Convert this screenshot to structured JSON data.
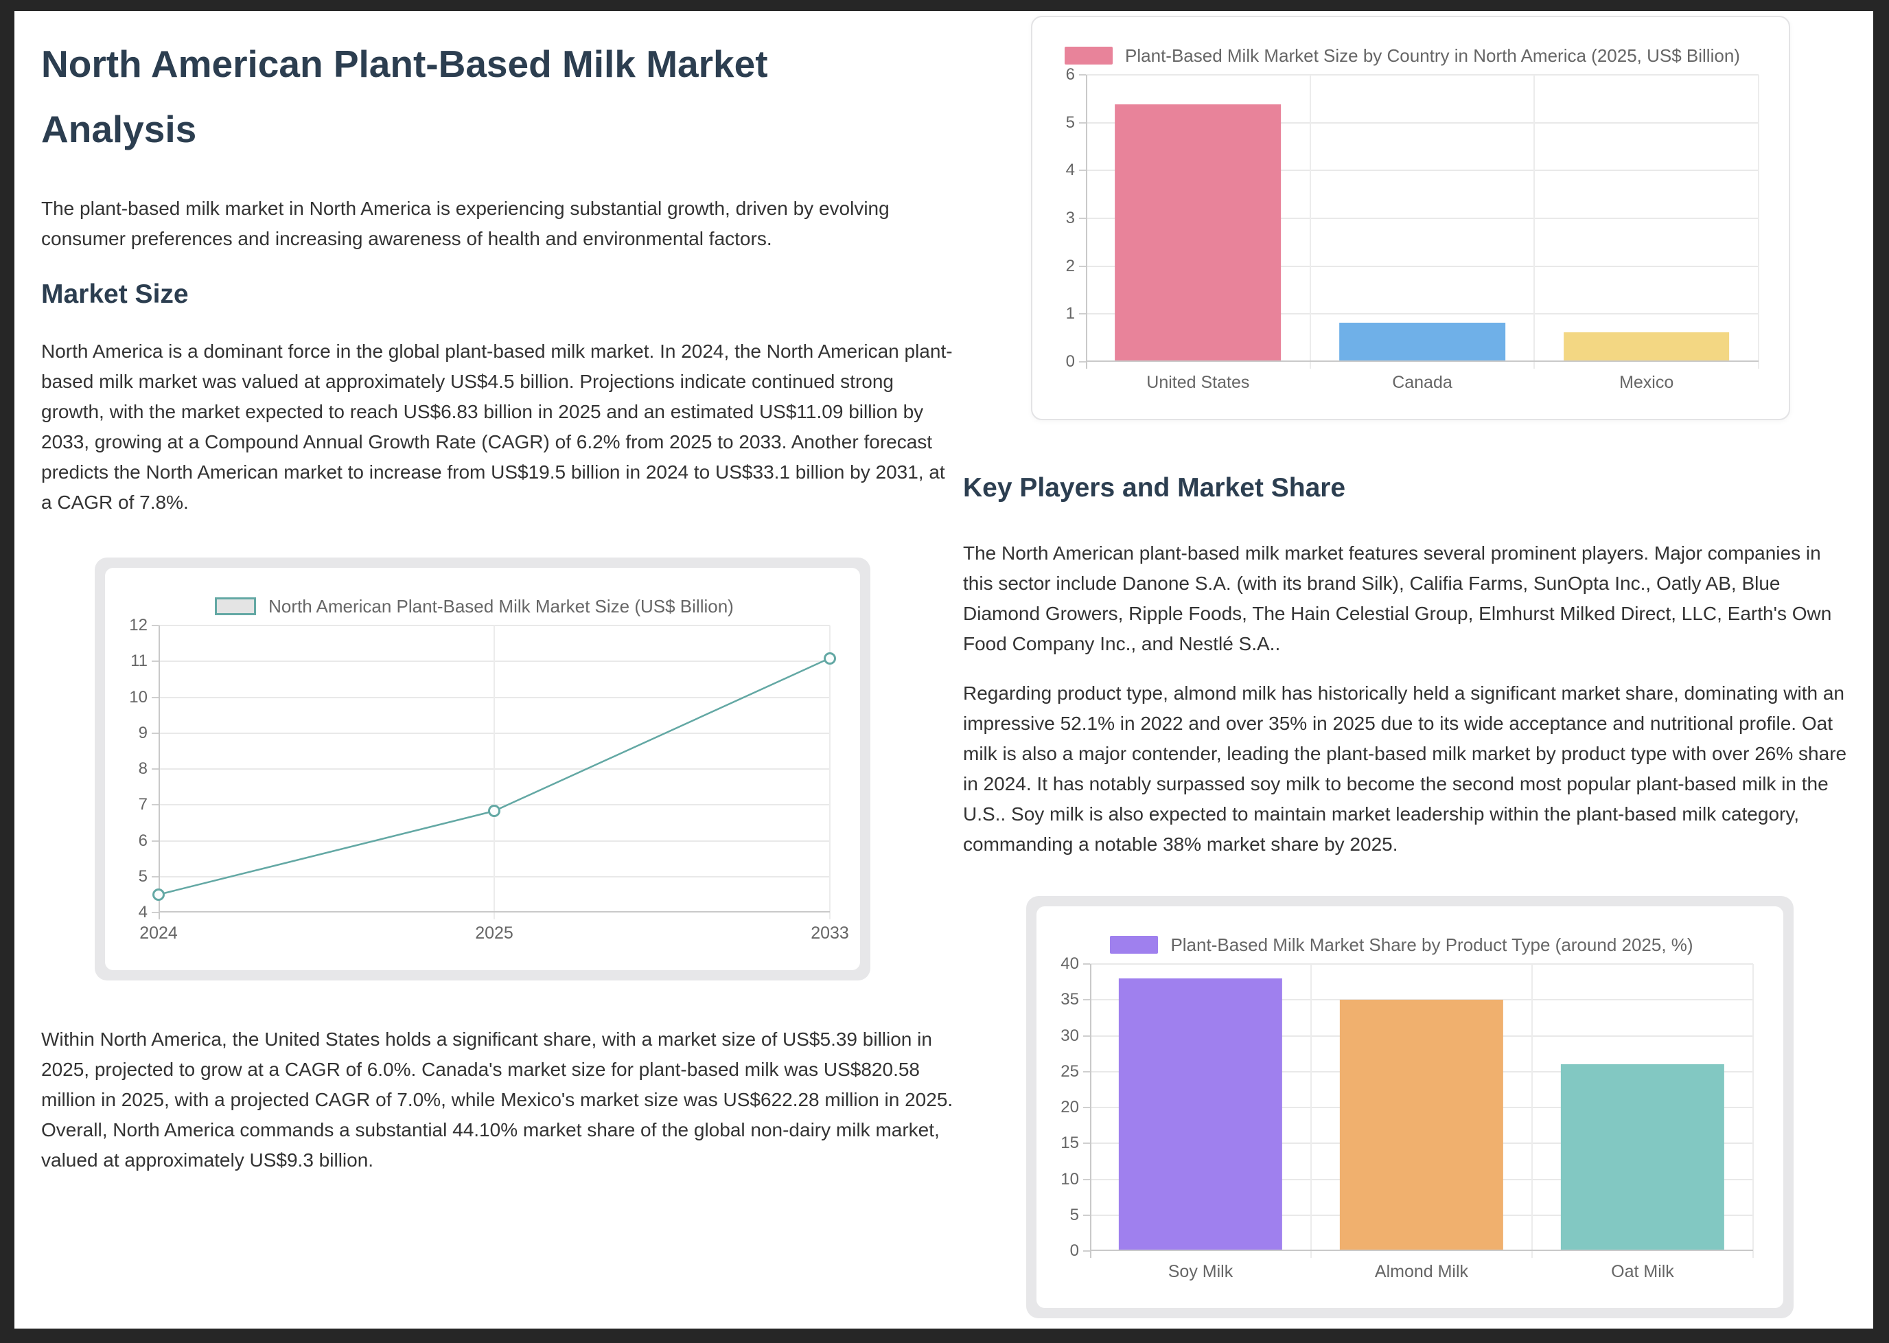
{
  "page": {
    "title": "North American Plant-Based Milk Market Analysis",
    "intro": "The plant-based milk market in North America is experiencing substantial growth, driven by evolving consumer preferences and increasing awareness of health and environmental factors."
  },
  "sections": {
    "market_size": {
      "heading": "Market Size",
      "p1": "North America is a dominant force in the global plant-based milk market. In 2024, the North American plant-based milk market was valued at approximately US$4.5 billion. Projections indicate continued strong growth, with the market expected to reach US$6.83 billion in 2025 and an estimated US$11.09 billion by 2033, growing at a Compound Annual Growth Rate (CAGR) of 6.2% from 2025 to 2033. Another forecast predicts the North American market to increase from US$19.5 billion in 2024 to US$33.1 billion by 2031, at a CAGR of 7.8%.",
      "p2": "Within North America, the United States holds a significant share, with a market size of US$5.39 billion in 2025, projected to grow at a CAGR of 6.0%. Canada's market size for plant-based milk was US$820.58 million in 2025, with a projected CAGR of 7.0%, while Mexico's market size was US$622.28 million in 2025. Overall, North America commands a substantial 44.10% market share of the global non-dairy milk market, valued at approximately US$9.3 billion."
    },
    "key_players": {
      "heading": "Key Players and Market Share",
      "p1": "The North American plant-based milk market features several prominent players. Major companies in this sector include Danone S.A. (with its brand Silk), Califia Farms, SunOpta Inc., Oatly AB, Blue Diamond Growers, Ripple Foods, The Hain Celestial Group, Elmhurst Milked Direct, LLC, Earth's Own Food Company Inc., and Nestlé S.A..",
      "p2": "Regarding product type, almond milk has historically held a significant market share, dominating with an impressive 52.1% in 2022 and over 35% in 2025 due to its wide acceptance and nutritional profile. Oat milk is also a major contender, leading the plant-based milk market by product type with over 26% share in 2024. It has notably surpassed soy milk to become the second most popular plant-based milk in the U.S.. Soy milk is also expected to maintain market leadership within the plant-based milk category, commanding a notable 38% market share by 2025."
    }
  },
  "colors": {
    "background_frame": "#262626",
    "heading": "#2c3e50",
    "body_text": "#333333",
    "axis_text": "#666666",
    "line_series": "#63a8a4",
    "us_bar": "#e8839a",
    "canada_bar": "#6fb0e8",
    "mexico_bar": "#f3d783",
    "soy_bar": "#9f80ee",
    "almond_bar": "#f0b06e",
    "oat_bar": "#82c8c2"
  },
  "chart_data": [
    {
      "type": "line",
      "title": "North American Plant-Based Milk Market Size (US$ Billion)",
      "x": [
        "2024",
        "2025",
        "2033"
      ],
      "values": [
        4.5,
        6.83,
        11.09
      ],
      "ylim": [
        4,
        12
      ],
      "ytick_step": 1,
      "line_color": "#63a8a4",
      "legend_fill": "#e4e4e4",
      "grid": true,
      "legend_position": "top"
    },
    {
      "type": "bar",
      "title": "Plant-Based Milk Market Size by Country in North America (2025, US$ Billion)",
      "categories": [
        "United States",
        "Canada",
        "Mexico"
      ],
      "values": [
        5.39,
        0.82,
        0.62
      ],
      "bar_colors": [
        "#e8839a",
        "#6fb0e8",
        "#f3d783"
      ],
      "legend_color": "#e8839a",
      "ylim": [
        0,
        6
      ],
      "ytick_step": 1,
      "grid": true,
      "legend_position": "top"
    },
    {
      "type": "bar",
      "title": "Plant-Based Milk Market Share by Product Type (around 2025, %)",
      "categories": [
        "Soy Milk",
        "Almond Milk",
        "Oat Milk"
      ],
      "values": [
        38,
        35,
        26
      ],
      "bar_colors": [
        "#9f80ee",
        "#f0b06e",
        "#82c8c2"
      ],
      "legend_color": "#9f80ee",
      "ylim": [
        0,
        40
      ],
      "ytick_step": 5,
      "grid": true,
      "legend_position": "top"
    }
  ]
}
